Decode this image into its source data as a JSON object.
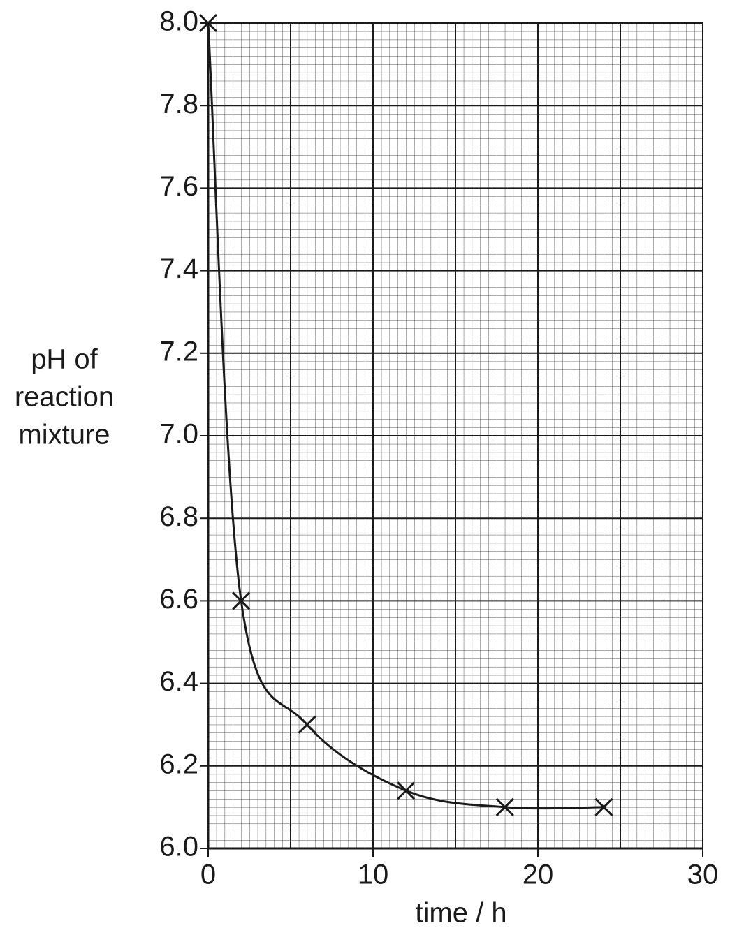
{
  "chart_data": {
    "type": "scatter",
    "ylabel": [
      "pH of",
      "reaction",
      "mixture"
    ],
    "xlabel": "time / h",
    "x": [
      0,
      2,
      6,
      12,
      18,
      24
    ],
    "values": [
      8.0,
      6.6,
      6.3,
      6.14,
      6.1,
      6.1
    ],
    "color": "#1a1a1a",
    "line": true,
    "marker": "x",
    "xlim": [
      0,
      30
    ],
    "ylim": [
      6.0,
      8.0
    ],
    "xticks": [
      0,
      10,
      20,
      30
    ],
    "xgrid": [
      0,
      5,
      10,
      15,
      20,
      25,
      30
    ],
    "yticks": [
      {
        "value": 6.0,
        "label": "6.0"
      },
      6.2,
      6.4,
      6.6,
      6.8,
      {
        "value": 7.0,
        "label": "7.0"
      },
      7.2,
      7.4,
      7.6,
      7.8,
      {
        "value": 8.0,
        "label": "8.0"
      }
    ],
    "grid": true
  }
}
